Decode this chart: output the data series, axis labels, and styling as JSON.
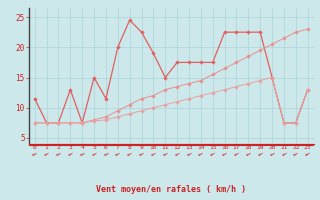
{
  "bg_color": "#cce8eb",
  "grid_color": "#aad4d8",
  "line1_color": "#e06060",
  "line2_color": "#e89090",
  "line3_color": "#e8a0a0",
  "xlabel": "Vent moyen/en rafales ( km/h )",
  "xlim": [
    -0.5,
    23.5
  ],
  "ylim": [
    4.0,
    26.5
  ],
  "yticks": [
    5,
    10,
    15,
    20,
    25
  ],
  "xticks": [
    0,
    1,
    2,
    3,
    4,
    5,
    6,
    7,
    8,
    9,
    10,
    11,
    12,
    13,
    14,
    15,
    16,
    17,
    18,
    19,
    20,
    21,
    22,
    23
  ],
  "series1_x": [
    0,
    1,
    2,
    3,
    4,
    5,
    6,
    7,
    8,
    9,
    10,
    11,
    12,
    13,
    14,
    15,
    16,
    17,
    18,
    19,
    20,
    21,
    22,
    23
  ],
  "series1_y": [
    11.5,
    7.5,
    7.5,
    13.0,
    7.5,
    15.0,
    11.5,
    20.0,
    24.5,
    22.5,
    19.0,
    15.0,
    17.5,
    17.5,
    17.5,
    17.5,
    22.5,
    22.5,
    22.5,
    22.5,
    15.0,
    7.5,
    7.5,
    13.0
  ],
  "series2_x": [
    0,
    1,
    2,
    3,
    4,
    5,
    6,
    7,
    8,
    9,
    10,
    11,
    12,
    13,
    14,
    15,
    16,
    17,
    18,
    19,
    20,
    21,
    22,
    23
  ],
  "series2_y": [
    7.5,
    7.5,
    7.5,
    7.5,
    7.5,
    8.0,
    8.5,
    9.5,
    10.5,
    11.5,
    12.0,
    13.0,
    13.5,
    14.0,
    14.5,
    15.5,
    16.5,
    17.5,
    18.5,
    19.5,
    20.5,
    21.5,
    22.5,
    23.0
  ],
  "series3_x": [
    0,
    1,
    2,
    3,
    4,
    5,
    6,
    7,
    8,
    9,
    10,
    11,
    12,
    13,
    14,
    15,
    16,
    17,
    18,
    19,
    20,
    21,
    22,
    23
  ],
  "series3_y": [
    7.5,
    7.5,
    7.5,
    7.5,
    7.5,
    7.8,
    8.0,
    8.5,
    9.0,
    9.5,
    10.0,
    10.5,
    11.0,
    11.5,
    12.0,
    12.5,
    13.0,
    13.5,
    14.0,
    14.5,
    15.0,
    7.5,
    7.5,
    13.0
  ],
  "xlabel_color": "#cc2222",
  "tick_color": "#cc2222",
  "axis_color": "#cc2222",
  "left_spine_color": "#444444"
}
